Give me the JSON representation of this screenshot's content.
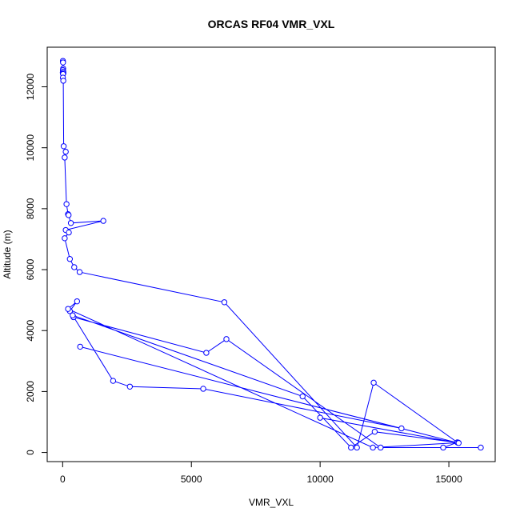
{
  "chart_data": {
    "type": "line",
    "title": "ORCAS RF04 VMR_VXL",
    "xlabel": "VMR_VXL",
    "ylabel": "Altitude (m)",
    "xlim": [
      -600,
      16800
    ],
    "ylim": [
      -300,
      13300
    ],
    "xticks": [
      0,
      5000,
      10000,
      15000
    ],
    "xtick_labels": [
      "0",
      "5000",
      "10000",
      "15000"
    ],
    "yticks": [
      0,
      2000,
      4000,
      6000,
      8000,
      10000,
      12000
    ],
    "ytick_labels": [
      "0",
      "2000",
      "4000",
      "6000",
      "8000",
      "10000",
      "12000"
    ],
    "grid": false,
    "series_color": "#0000ff",
    "marker": "open-circle",
    "x": [
      10,
      15,
      20,
      10,
      5,
      25,
      30,
      15,
      10,
      25,
      40,
      120,
      80,
      150,
      210,
      230,
      320,
      1580,
      120,
      240,
      80,
      280,
      450,
      660,
      6280,
      11430,
      12080,
      15330,
      14780,
      16240,
      12350,
      6360,
      5580,
      420,
      280,
      560,
      210,
      12050,
      15370,
      12120,
      11200,
      9320,
      390,
      1960,
      2610,
      5460,
      13160,
      680,
      15380,
      10000
    ],
    "y": [
      12850,
      12800,
      12600,
      12550,
      12470,
      12500,
      12450,
      12420,
      12300,
      12200,
      10050,
      9870,
      9680,
      8150,
      7820,
      7790,
      7530,
      7600,
      7300,
      7220,
      7030,
      6350,
      6080,
      5920,
      4930,
      160,
      2290,
      330,
      160,
      160,
      160,
      3720,
      3270,
      4440,
      4640,
      4960,
      4710,
      160,
      320,
      680,
      160,
      1840,
      4500,
      2350,
      2160,
      2090,
      790,
      3470,
      310,
      1140
    ]
  }
}
